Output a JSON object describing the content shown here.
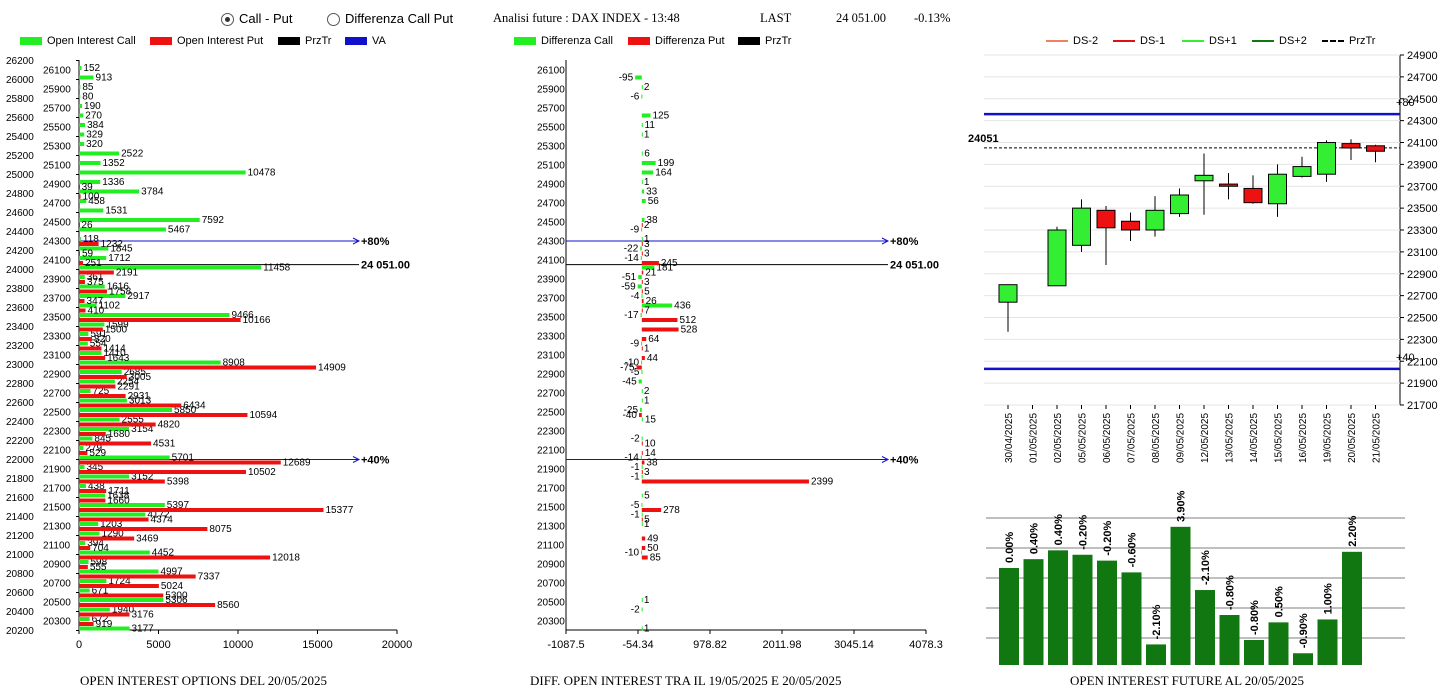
{
  "header": {
    "radio_call_put": "Call - Put",
    "radio_diff": "Differenza Call Put",
    "title": "Analisi future : DAX INDEX - 13:48",
    "last_label": "LAST",
    "last_value": "24 051.00",
    "change": "-0.13%"
  },
  "legend1": [
    {
      "label": "Open Interest Call",
      "color": "#22ee22"
    },
    {
      "label": "Open Interest Put",
      "color": "#ee1111"
    },
    {
      "label": "PrzTr",
      "color": "#000000"
    },
    {
      "label": "VA",
      "color": "#1111cc"
    }
  ],
  "legend2": [
    {
      "label": "Differenza Call",
      "color": "#22ee22"
    },
    {
      "label": "Differenza Put",
      "color": "#ee1111"
    },
    {
      "label": "PrzTr",
      "color": "#000000"
    }
  ],
  "legend3": [
    {
      "label": "DS-2",
      "color": "#f08060"
    },
    {
      "label": "DS-1",
      "color": "#dd1111"
    },
    {
      "label": "DS+1",
      "color": "#33ee33"
    },
    {
      "label": "DS+2",
      "color": "#117711"
    },
    {
      "label": "PrzTr",
      "color": "#000000"
    }
  ],
  "captions": {
    "left": "OPEN INTEREST OPTIONS DEL 20/05/2025",
    "middle": "DIFF. OPEN INTEREST TRA IL 19/05/2025 E 20/05/2025",
    "right": "OPEN INTEREST FUTURE AL 20/05/2025"
  },
  "chart_data": [
    {
      "type": "bar",
      "orientation": "horizontal",
      "title": "OPEN INTEREST OPTIONS DEL 20/05/2025",
      "outer_tick_labels": [
        "26200",
        "26000",
        "25800",
        "25600",
        "25400",
        "25200",
        "25000",
        "24800",
        "24600",
        "24400",
        "24200",
        "24000",
        "23800",
        "23600",
        "23400",
        "23200",
        "23000",
        "22800",
        "22600",
        "22400",
        "22200",
        "22000",
        "21800",
        "21600",
        "21400",
        "21200",
        "21000",
        "20800",
        "20600",
        "20400",
        "20200"
      ],
      "categories": [
        "26100",
        "26000",
        "25900",
        "25800",
        "25700",
        "25600",
        "25500",
        "25400",
        "25300",
        "25200",
        "25100",
        "25000",
        "24900",
        "24800",
        "24700",
        "24600",
        "24500",
        "24400",
        "24300",
        "24200",
        "24100",
        "24000",
        "23900",
        "23800",
        "23700",
        "23600",
        "23500",
        "23400",
        "23300",
        "23200",
        "23100",
        "23000",
        "22900",
        "22800",
        "22700",
        "22600",
        "22500",
        "22400",
        "22300",
        "22200",
        "22100",
        "22000",
        "21900",
        "21800",
        "21700",
        "21600",
        "21500",
        "21400",
        "21300",
        "21200",
        "21100",
        "21000",
        "20900",
        "20800",
        "20700",
        "20600",
        "20500",
        "20400",
        "20300",
        "20200"
      ],
      "series": [
        {
          "name": "Open Interest Call",
          "values": [
            152,
            913,
            85,
            80,
            190,
            270,
            384,
            329,
            320,
            2522,
            1352,
            10478,
            1336,
            3784,
            458,
            1531,
            7592,
            5467,
            118,
            1845,
            1712,
            11458,
            361,
            1616,
            2917,
            1102,
            9466,
            1599,
            591,
            554,
            1410,
            8908,
            2685,
            2254,
            725,
            3013,
            5850,
            2555,
            3154,
            845,
            279,
            5701,
            345,
            3152,
            438,
            1638,
            5397,
            4172,
            1203,
            1290,
            394,
            4452,
            598,
            4997,
            1724,
            671,
            5306,
            1940,
            672,
            3177
          ]
        },
        {
          "name": "Open Interest Put",
          "values": [
            0,
            0,
            0,
            0,
            0,
            0,
            0,
            0,
            0,
            0,
            0,
            0,
            39,
            100,
            0,
            0,
            26,
            0,
            1232,
            59,
            251,
            2191,
            375,
            1758,
            347,
            410,
            10166,
            1500,
            820,
            1414,
            1643,
            14909,
            3005,
            2291,
            2931,
            6434,
            10594,
            4820,
            1680,
            4531,
            529,
            12689,
            10502,
            5398,
            1711,
            1660,
            15377,
            4374,
            8075,
            3469,
            704,
            12018,
            555,
            7337,
            5024,
            5300,
            8560,
            3176,
            919,
            0
          ]
        }
      ],
      "markers": [
        {
          "label": "+80%",
          "price": 24300
        },
        {
          "label": "24 051.00",
          "price": 24051
        },
        {
          "label": "+40%",
          "price": 22000
        }
      ],
      "xlim": [
        0,
        20000
      ],
      "xticks": [
        "0",
        "5000",
        "10000",
        "15000",
        "20000"
      ]
    },
    {
      "type": "bar",
      "orientation": "horizontal",
      "title": "DIFF. OPEN INTEREST TRA IL 19/05/2025 E 20/05/2025",
      "categories": [
        "26100",
        "26000",
        "25900",
        "25800",
        "25700",
        "25600",
        "25500",
        "25400",
        "25300",
        "25200",
        "25100",
        "25000",
        "24900",
        "24800",
        "24700",
        "24600",
        "24500",
        "24400",
        "24300",
        "24200",
        "24100",
        "24000",
        "23900",
        "23800",
        "23700",
        "23600",
        "23500",
        "23400",
        "23300",
        "23200",
        "23100",
        "23000",
        "22900",
        "22800",
        "22700",
        "22600",
        "22500",
        "22400",
        "22300",
        "22200",
        "22100",
        "22000",
        "21900",
        "21800",
        "21700",
        "21600",
        "21500",
        "21400",
        "21300",
        "21200",
        "21100",
        "21000",
        "20900",
        "20800",
        "20700",
        "20600",
        "20500",
        "20400",
        "20300",
        "20200"
      ],
      "series": [
        {
          "name": "Differenza Call",
          "values": [
            0,
            -95,
            2,
            -6,
            0,
            125,
            11,
            1,
            0,
            6,
            199,
            164,
            1,
            33,
            56,
            0,
            38,
            -9,
            1,
            -22,
            -14,
            181,
            -51,
            -59,
            -4,
            436,
            -17,
            0,
            0,
            -9,
            0,
            -10,
            -5,
            -45,
            2,
            1,
            -25,
            15,
            0,
            -2,
            0,
            -14,
            -1,
            -1,
            0,
            5,
            -5,
            -1,
            1,
            0,
            0,
            -10,
            0,
            0,
            0,
            0,
            1,
            -2,
            0,
            1
          ]
        },
        {
          "name": "Differenza Put",
          "values": [
            0,
            0,
            0,
            0,
            0,
            0,
            0,
            0,
            0,
            0,
            0,
            0,
            0,
            0,
            0,
            0,
            2,
            0,
            3,
            3,
            245,
            21,
            3,
            5,
            26,
            7,
            512,
            528,
            64,
            1,
            44,
            -75,
            0,
            0,
            0,
            0,
            -40,
            0,
            0,
            10,
            14,
            38,
            3,
            2399,
            0,
            0,
            278,
            5,
            0,
            49,
            50,
            85,
            0,
            0,
            0,
            0,
            0,
            0,
            0,
            0
          ]
        }
      ],
      "markers": [
        {
          "label": "+80%",
          "price": 24300
        },
        {
          "label": "24 051.00",
          "price": 24051
        },
        {
          "label": "+40%",
          "price": 22000
        }
      ],
      "xlim": [
        -1087.5,
        4078.3
      ],
      "xticks": [
        "-1087.5",
        "-54.34",
        "978.82",
        "2011.98",
        "3045.14",
        "4078.3"
      ]
    },
    {
      "type": "candlestick",
      "dates": [
        "30/04/2025",
        "01/05/2025",
        "02/05/2025",
        "05/05/2025",
        "06/05/2025",
        "07/05/2025",
        "08/05/2025",
        "09/05/2025",
        "12/05/2025",
        "13/05/2025",
        "14/05/2025",
        "15/05/2025",
        "16/05/2025",
        "19/05/2025",
        "20/05/2025",
        "21/05/2025"
      ],
      "ohlc": [
        [
          22640,
          22800,
          22370,
          22800
        ],
        null,
        [
          22790,
          23330,
          22790,
          23300
        ],
        [
          23160,
          23580,
          23100,
          23500
        ],
        [
          23480,
          23520,
          22980,
          23320
        ],
        [
          23380,
          23460,
          23200,
          23300
        ],
        [
          23300,
          23610,
          23240,
          23480
        ],
        [
          23450,
          23680,
          23420,
          23620
        ],
        [
          23750,
          24000,
          23440,
          23800
        ],
        [
          23720,
          23820,
          23580,
          23700
        ],
        [
          23680,
          23800,
          23540,
          23550
        ],
        [
          23540,
          23900,
          23420,
          23810
        ],
        [
          23790,
          23970,
          23780,
          23880
        ],
        [
          23810,
          24120,
          23740,
          24100
        ],
        [
          24090,
          24130,
          23940,
          24050
        ],
        [
          24070,
          24080,
          23920,
          24020
        ]
      ],
      "last": "24051",
      "h_lines": [
        {
          "label": "+80",
          "price": 24360
        },
        {
          "label": "+40",
          "price": 22030
        }
      ],
      "ylim": [
        21700,
        24900
      ],
      "yticks": [
        "24900",
        "24700",
        "24500",
        "24300",
        "24100",
        "23900",
        "23700",
        "23500",
        "23300",
        "23100",
        "22900",
        "22700",
        "22500",
        "22300",
        "22100",
        "21900",
        "21700"
      ]
    },
    {
      "type": "bar",
      "title": "OPEN INTEREST FUTURE AL 20/05/2025",
      "bar_labels": [
        "0.00%",
        "0.40%",
        "0.40%",
        "-0.20%",
        "-0.20%",
        "-0.60%",
        "-2.10%",
        "3.90%",
        "-2.10%",
        "-0.80%",
        "-0.80%",
        "0.50%",
        "-0.90%",
        "1.00%",
        "2.20%"
      ],
      "values": [
        0.66,
        0.72,
        0.78,
        0.75,
        0.71,
        0.63,
        0.14,
        0.94,
        0.51,
        0.34,
        0.17,
        0.29,
        0.08,
        0.31,
        0.77
      ]
    }
  ]
}
